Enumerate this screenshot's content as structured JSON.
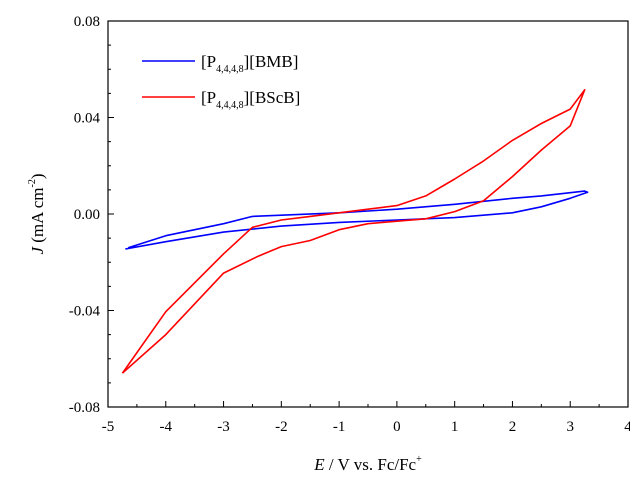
{
  "chart_data": {
    "type": "line",
    "xlabel": {
      "italic": "E",
      "text": " / V vs. Fc/Fc",
      "sup": "+"
    },
    "ylabel": {
      "italic": "J",
      "text": " (mA cm",
      "sup": "-2",
      "close": ")"
    },
    "xlim": [
      -5,
      4
    ],
    "ylim": [
      -0.08,
      0.08
    ],
    "x_ticks": [
      -5,
      -4,
      -3,
      -2,
      -1,
      0,
      1,
      2,
      3,
      4
    ],
    "x_tick_labels": [
      "-5",
      "-4",
      "-3",
      "-2",
      "-1",
      "0",
      "1",
      "2",
      "3",
      "4"
    ],
    "y_ticks": [
      -0.08,
      -0.04,
      0.0,
      0.04,
      0.08
    ],
    "y_tick_labels": [
      "-0.08",
      "-0.04",
      "0.00",
      "0.04",
      "0.08"
    ],
    "grid": false,
    "legend_position": "top-left",
    "series": [
      {
        "name": {
          "base": "[P",
          "sub": "4,4,4,8",
          "tail": "][BMB]"
        },
        "color": "#0000ff",
        "x": [
          -4.7,
          -4.0,
          -3.0,
          -2.0,
          -1.0,
          0.0,
          1.0,
          2.0,
          2.5,
          3.0,
          3.3,
          3.25,
          2.5,
          2.0,
          1.0,
          0.0,
          -1.0,
          -2.0,
          -2.5,
          -3.0,
          -4.0,
          -4.65
        ],
        "y": [
          -0.0145,
          -0.0115,
          -0.0075,
          -0.005,
          -0.0035,
          -0.0025,
          -0.0015,
          0.0005,
          0.003,
          0.0065,
          0.009,
          0.0095,
          0.0075,
          0.0065,
          0.004,
          0.002,
          0.0005,
          -0.0005,
          -0.001,
          -0.004,
          -0.009,
          -0.014
        ]
      },
      {
        "name": {
          "base": "[P",
          "sub": "4,4,4,8",
          "tail": "][BScB]"
        },
        "color": "#ff0000",
        "x": [
          -4.75,
          -4.0,
          -3.0,
          -2.4,
          -2.0,
          -1.5,
          -1.0,
          -0.5,
          0.0,
          0.5,
          1.0,
          1.5,
          2.0,
          2.5,
          3.0,
          3.25,
          3.0,
          2.5,
          2.0,
          1.5,
          1.0,
          0.5,
          0.0,
          -0.5,
          -1.0,
          -1.5,
          -2.0,
          -2.5,
          -3.0,
          -4.0,
          -4.75
        ],
        "y": [
          -0.066,
          -0.05,
          -0.0245,
          -0.0175,
          -0.0135,
          -0.011,
          -0.0065,
          -0.004,
          -0.003,
          -0.002,
          0.001,
          0.0055,
          0.0155,
          0.0265,
          0.0365,
          0.0515,
          0.0435,
          0.0375,
          0.0305,
          0.022,
          0.0145,
          0.0075,
          0.0035,
          0.002,
          0.0005,
          -0.001,
          -0.0025,
          -0.0055,
          -0.0165,
          -0.0405,
          -0.066
        ]
      }
    ]
  }
}
